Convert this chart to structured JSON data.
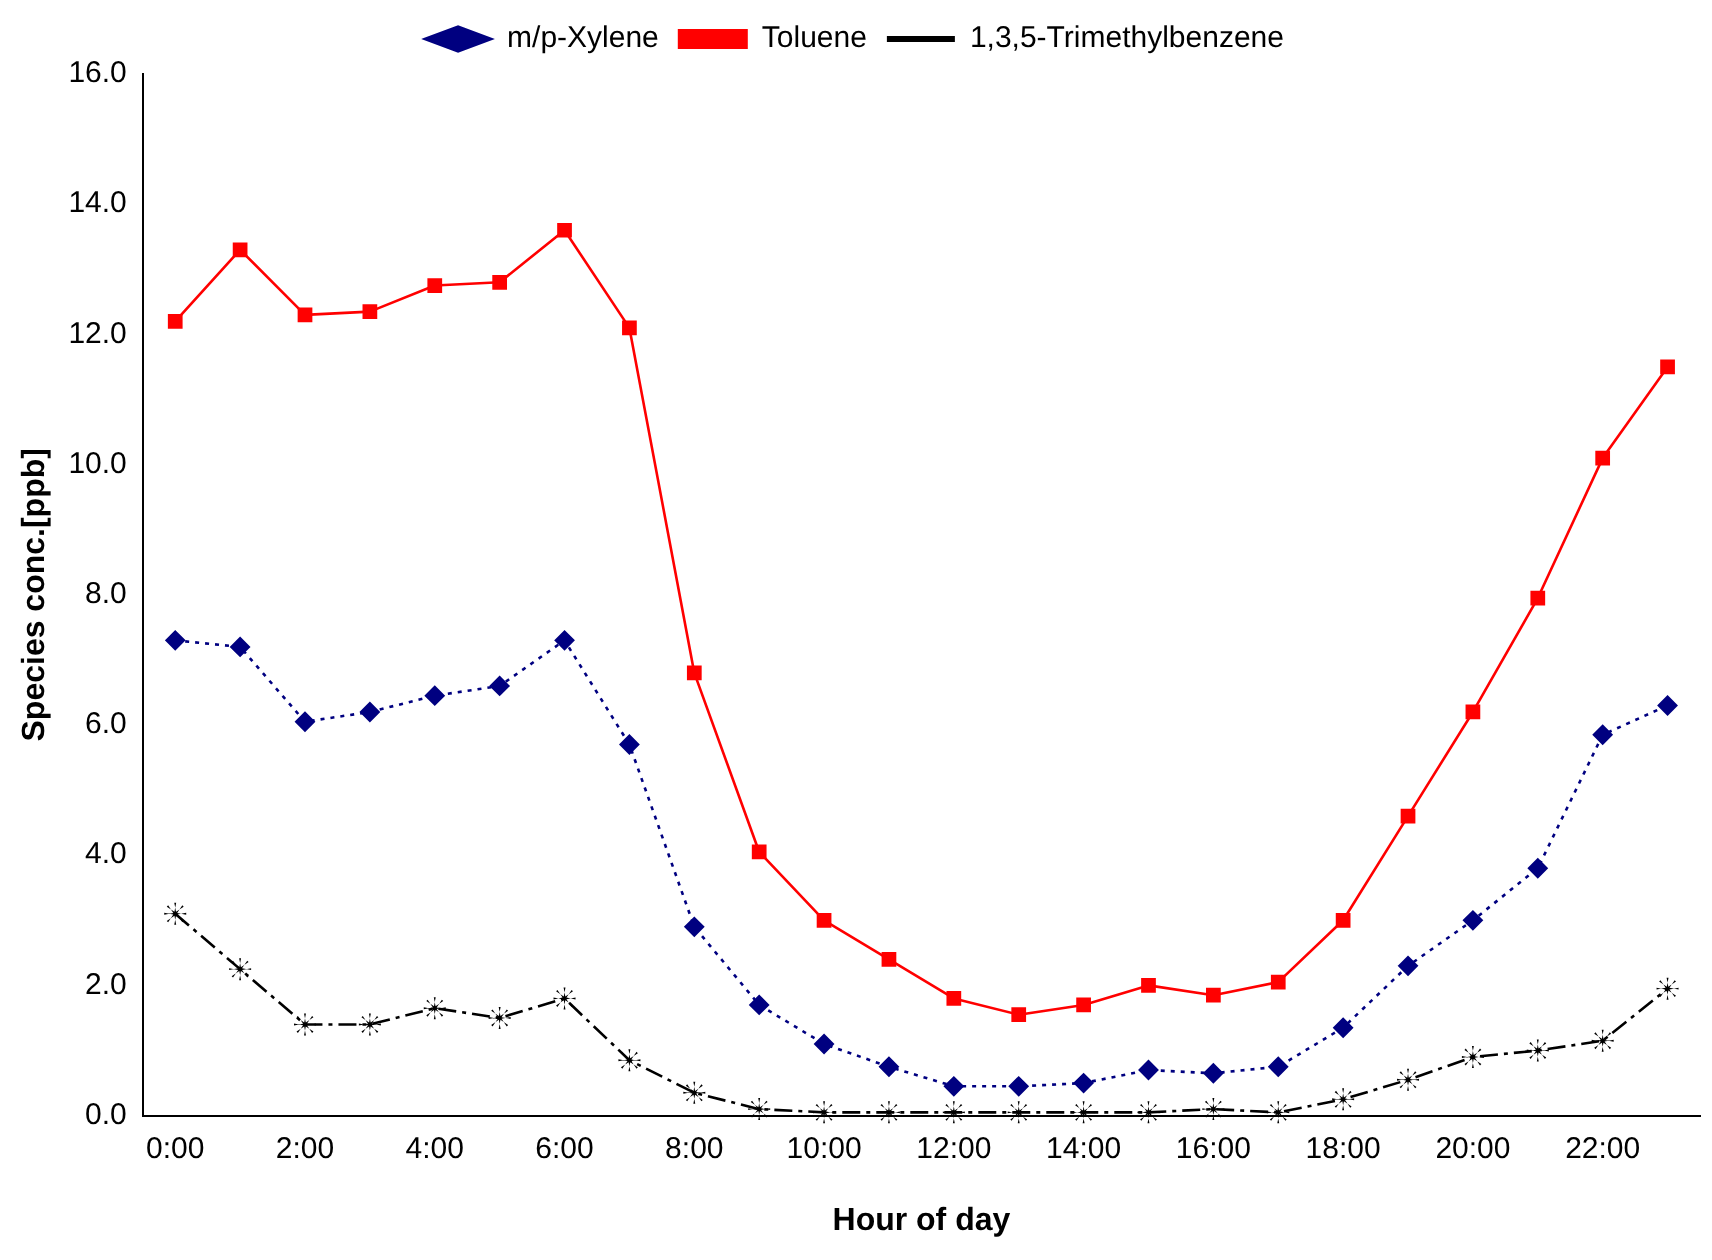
{
  "chart_data": {
    "type": "line",
    "xlabel": "Hour of day",
    "ylabel": "Species conc.[ppb]",
    "categories": [
      "0:00",
      null,
      "2:00",
      null,
      "4:00",
      null,
      "6:00",
      null,
      "8:00",
      null,
      "10:00",
      null,
      "12:00",
      null,
      "14:00",
      null,
      "16:00",
      null,
      "18:00",
      null,
      "20:00",
      null,
      "22:00",
      null
    ],
    "series": [
      {
        "name": "m/p-Xylene",
        "color": "#000080",
        "marker": "diamond",
        "line_style": "dotted",
        "values": [
          7.3,
          7.2,
          6.05,
          6.2,
          6.45,
          6.6,
          7.3,
          5.7,
          2.9,
          1.7,
          1.1,
          0.75,
          0.45,
          0.45,
          0.5,
          0.7,
          0.65,
          0.75,
          1.35,
          2.3,
          3.0,
          3.8,
          5.85,
          6.3
        ]
      },
      {
        "name": "Toluene",
        "color": "#ff0000",
        "marker": "square",
        "line_style": "solid",
        "values": [
          12.2,
          13.3,
          12.3,
          12.35,
          12.75,
          12.8,
          13.6,
          12.1,
          6.8,
          4.05,
          3.0,
          2.4,
          1.8,
          1.55,
          1.7,
          2.0,
          1.85,
          2.05,
          3.0,
          4.6,
          6.2,
          7.95,
          10.1,
          11.5
        ]
      },
      {
        "name": "1,3,5-Trimethylbenzene",
        "color": "#000000",
        "marker": "star",
        "line_style": "dashdot",
        "values": [
          3.1,
          2.25,
          1.4,
          1.4,
          1.65,
          1.5,
          1.8,
          0.85,
          0.35,
          0.1,
          0.05,
          0.05,
          0.05,
          0.05,
          0.05,
          0.05,
          0.1,
          0.05,
          0.25,
          0.55,
          0.9,
          1.0,
          1.15,
          1.95
        ]
      }
    ],
    "ylim": [
      0,
      16
    ],
    "yticks": [
      {
        "value": 0,
        "label": "0.0"
      },
      {
        "value": 2,
        "label": "2.0"
      },
      {
        "value": 4,
        "label": "4.0"
      },
      {
        "value": 6,
        "label": "6.0"
      },
      {
        "value": 8,
        "label": "8.0"
      },
      {
        "value": 10,
        "label": "10.0"
      },
      {
        "value": 12,
        "label": "12.0"
      },
      {
        "value": 14,
        "label": "14.0"
      },
      {
        "value": 16,
        "label": "16.0"
      }
    ],
    "grid": false,
    "legend": "top"
  }
}
